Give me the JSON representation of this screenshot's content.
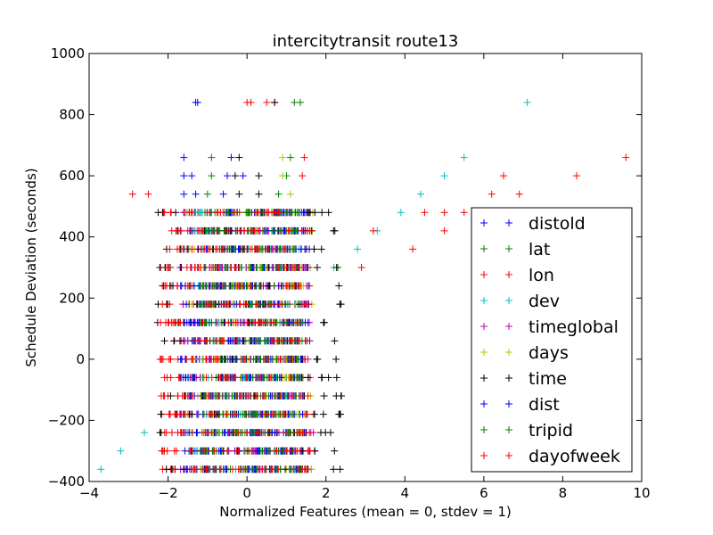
{
  "chart_data": {
    "type": "scatter",
    "title": "intercitytransit route13",
    "xlabel": "Normalized Features (mean = 0, stdev = 1)",
    "ylabel": "Schedule Deviation (seconds)",
    "xlim": [
      -4,
      10
    ],
    "ylim": [
      -400,
      1000
    ],
    "xticks": [
      -4,
      -2,
      0,
      2,
      4,
      6,
      8,
      10
    ],
    "yticks": [
      -400,
      -200,
      0,
      200,
      400,
      600,
      800,
      1000
    ],
    "marker": "+",
    "grid": false,
    "legend_position": "lower-right",
    "y_levels": [
      -360,
      -300,
      -240,
      -180,
      -120,
      -60,
      0,
      60,
      120,
      180,
      240,
      300,
      360,
      420,
      480,
      540,
      600,
      660,
      840
    ],
    "series": [
      {
        "name": "distold",
        "color": "#0000ff",
        "range": [
          -1.7,
          1.6
        ],
        "points": [
          [
            -1.3,
            840
          ],
          [
            -1.25,
            840
          ],
          [
            -1.6,
            660
          ],
          [
            -0.4,
            660
          ],
          [
            -1.6,
            600
          ],
          [
            -1.4,
            600
          ],
          [
            -0.5,
            600
          ],
          [
            -1.6,
            540
          ],
          [
            -1.3,
            540
          ],
          [
            -0.6,
            540
          ],
          [
            0.15,
            -360
          ],
          [
            0.2,
            -360
          ]
        ]
      },
      {
        "name": "lat",
        "color": "#008000",
        "range": [
          -1.2,
          1.4
        ],
        "points": [
          [
            1.2,
            840
          ],
          [
            1.35,
            840
          ],
          [
            -0.9,
            660
          ],
          [
            1.1,
            660
          ],
          [
            -0.9,
            600
          ],
          [
            1.0,
            600
          ],
          [
            -1.0,
            540
          ],
          [
            0.8,
            540
          ],
          [
            2.3,
            300
          ]
        ]
      },
      {
        "name": "lon",
        "color": "#ff0000",
        "range": [
          -2.2,
          1.5
        ],
        "points": [
          [
            0.1,
            840
          ],
          [
            0.5,
            840
          ],
          [
            0.7,
            840
          ],
          [
            1.45,
            660
          ],
          [
            1.4,
            600
          ],
          [
            -2.9,
            540
          ],
          [
            -2.5,
            540
          ],
          [
            -2.2,
            0
          ]
        ]
      },
      {
        "name": "dev",
        "color": "#00bfbf",
        "range": [
          -1.6,
          1.4
        ],
        "points": [
          [
            7.1,
            840
          ],
          [
            5.5,
            660
          ],
          [
            5.0,
            600
          ],
          [
            4.4,
            540
          ],
          [
            3.9,
            480
          ],
          [
            3.3,
            420
          ],
          [
            2.8,
            360
          ],
          [
            2.2,
            300
          ],
          [
            -2.6,
            -240
          ],
          [
            -3.2,
            -300
          ],
          [
            -3.7,
            -360
          ]
        ]
      },
      {
        "name": "timeglobal",
        "color": "#bf00bf",
        "range": [
          -1.7,
          1.7
        ],
        "points": []
      },
      {
        "name": "days",
        "color": "#bfbf00",
        "range": [
          -1.5,
          1.7
        ],
        "points": [
          [
            0.9,
            660
          ],
          [
            0.9,
            600
          ],
          [
            1.1,
            540
          ]
        ]
      },
      {
        "name": "time",
        "color": "#000000",
        "range": [
          -2.3,
          2.4
        ],
        "points": [
          [
            0.7,
            840
          ],
          [
            -0.2,
            660
          ],
          [
            -0.3,
            600
          ],
          [
            0.3,
            600
          ],
          [
            -0.2,
            540
          ],
          [
            0.3,
            540
          ],
          [
            2.35,
            -180
          ]
        ]
      },
      {
        "name": "dist",
        "color": "#0000ff",
        "range": [
          -1.7,
          1.6
        ],
        "points": [
          [
            -0.1,
            600
          ]
        ]
      },
      {
        "name": "tripid",
        "color": "#008000",
        "range": [
          -1.2,
          1.4
        ],
        "points": []
      },
      {
        "name": "dayofweek",
        "color": "#ff0000",
        "range": [
          -2.2,
          1.6
        ],
        "points": [
          [
            9.6,
            660
          ],
          [
            6.5,
            600
          ],
          [
            8.35,
            600
          ],
          [
            6.2,
            540
          ],
          [
            6.9,
            540
          ],
          [
            4.5,
            480
          ],
          [
            5.0,
            480
          ],
          [
            5.5,
            480
          ],
          [
            3.2,
            420
          ],
          [
            5.0,
            420
          ],
          [
            4.2,
            360
          ],
          [
            2.9,
            300
          ],
          [
            0.0,
            840
          ]
        ]
      }
    ]
  }
}
